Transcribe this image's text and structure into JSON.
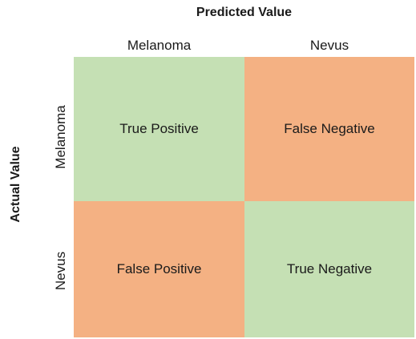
{
  "title_top": "Predicted Value",
  "title_side": "Actual Value",
  "columns": [
    "Melanoma",
    "Nevus"
  ],
  "rows": [
    "Melanoma",
    "Nevus"
  ],
  "cells": [
    {
      "label": "True Positive",
      "color": "#c5e0b4"
    },
    {
      "label": "False Negative",
      "color": "#f4b183"
    },
    {
      "label": "False Positive",
      "color": "#f4b183"
    },
    {
      "label": "True Negative",
      "color": "#c5e0b4"
    }
  ]
}
